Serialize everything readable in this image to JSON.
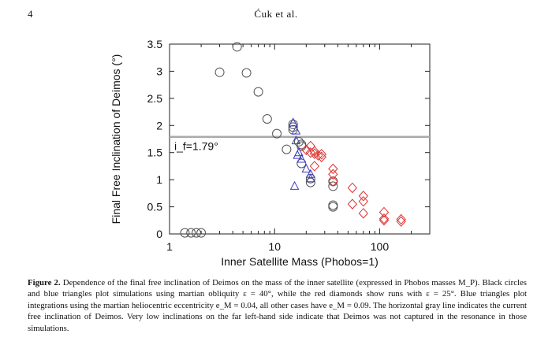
{
  "header": {
    "page_number": "4",
    "running_title": "Ćuk et al."
  },
  "chart_data": {
    "type": "scatter",
    "ylabel": "Final Free Inclination of Deimos (°)",
    "xlabel": "Inner Satellite Mass (Phobos=1)",
    "xscale": "log",
    "xlim": [
      1,
      300
    ],
    "ylim": [
      0,
      3.5
    ],
    "xticks": [
      "1",
      "10",
      "100"
    ],
    "xtick_values": [
      1,
      10,
      100
    ],
    "yticks": [
      "0",
      "0.5",
      "1",
      "1.5",
      "2",
      "2.5",
      "3",
      "3.5"
    ],
    "ytick_values": [
      0,
      0.5,
      1,
      1.5,
      2,
      2.5,
      3,
      3.5
    ],
    "reference_line": {
      "value": 1.79,
      "label": "i_f=1.79°",
      "color": "#aaaaaa"
    },
    "series": [
      {
        "marker": "circle",
        "color": "#555555",
        "x": [
          1.4,
          1.6,
          1.8,
          2.0,
          3.0,
          4.4,
          5.4,
          7.0,
          8.5,
          10.5,
          13.0,
          15.0,
          15.0,
          15.0,
          17.0,
          18.0,
          18.0,
          18.0,
          22.0,
          22.0,
          36.0,
          36.0,
          36.0,
          36.0
        ],
        "y": [
          0.02,
          0.02,
          0.02,
          0.02,
          2.98,
          3.45,
          2.97,
          2.62,
          2.12,
          1.85,
          1.56,
          2.02,
          1.97,
          1.92,
          1.7,
          1.65,
          1.62,
          1.3,
          1.02,
          0.95,
          0.97,
          0.88,
          0.53,
          0.5
        ]
      },
      {
        "marker": "triangle",
        "color": "#3b3bbd",
        "x": [
          15.0,
          16.0,
          16.0,
          17.0,
          18.0,
          20.0,
          22.0,
          22.0,
          15.5,
          16.5
        ],
        "y": [
          2.05,
          1.9,
          1.72,
          1.5,
          1.38,
          1.2,
          1.1,
          1.02,
          0.88,
          1.45
        ]
      },
      {
        "marker": "diamond",
        "color": "#e03030",
        "x": [
          20.0,
          22.0,
          22.0,
          24.0,
          24.0,
          26.0,
          28.0,
          28.0,
          24.0,
          36.0,
          36.0,
          36.0,
          55.0,
          55.0,
          70.0,
          70.0,
          70.0,
          110.0,
          110.0,
          110.0,
          160.0,
          160.0
        ],
        "y": [
          1.55,
          1.62,
          1.5,
          1.52,
          1.48,
          1.45,
          1.47,
          1.42,
          1.25,
          1.2,
          1.1,
          0.97,
          0.85,
          0.55,
          0.7,
          0.6,
          0.38,
          0.4,
          0.28,
          0.25,
          0.27,
          0.23
        ]
      }
    ]
  },
  "caption": {
    "label": "Figure 2.",
    "text": " Dependence of the final free inclination of Deimos on the mass of the inner satellite (expressed in Phobos masses M_P). Black circles and blue triangles plot simulations using martian obliquity ε = 40°, while the red diamonds show runs with ε = 25°. Blue triangles plot integrations using the martian heliocentric eccentricity e_M = 0.04, all other cases have e_M = 0.09. The horizontal gray line indicates the current free inclination of Deimos. Very low inclinations on the far left-hand side indicate that Deimos was not captured in the resonance in those simulations."
  }
}
